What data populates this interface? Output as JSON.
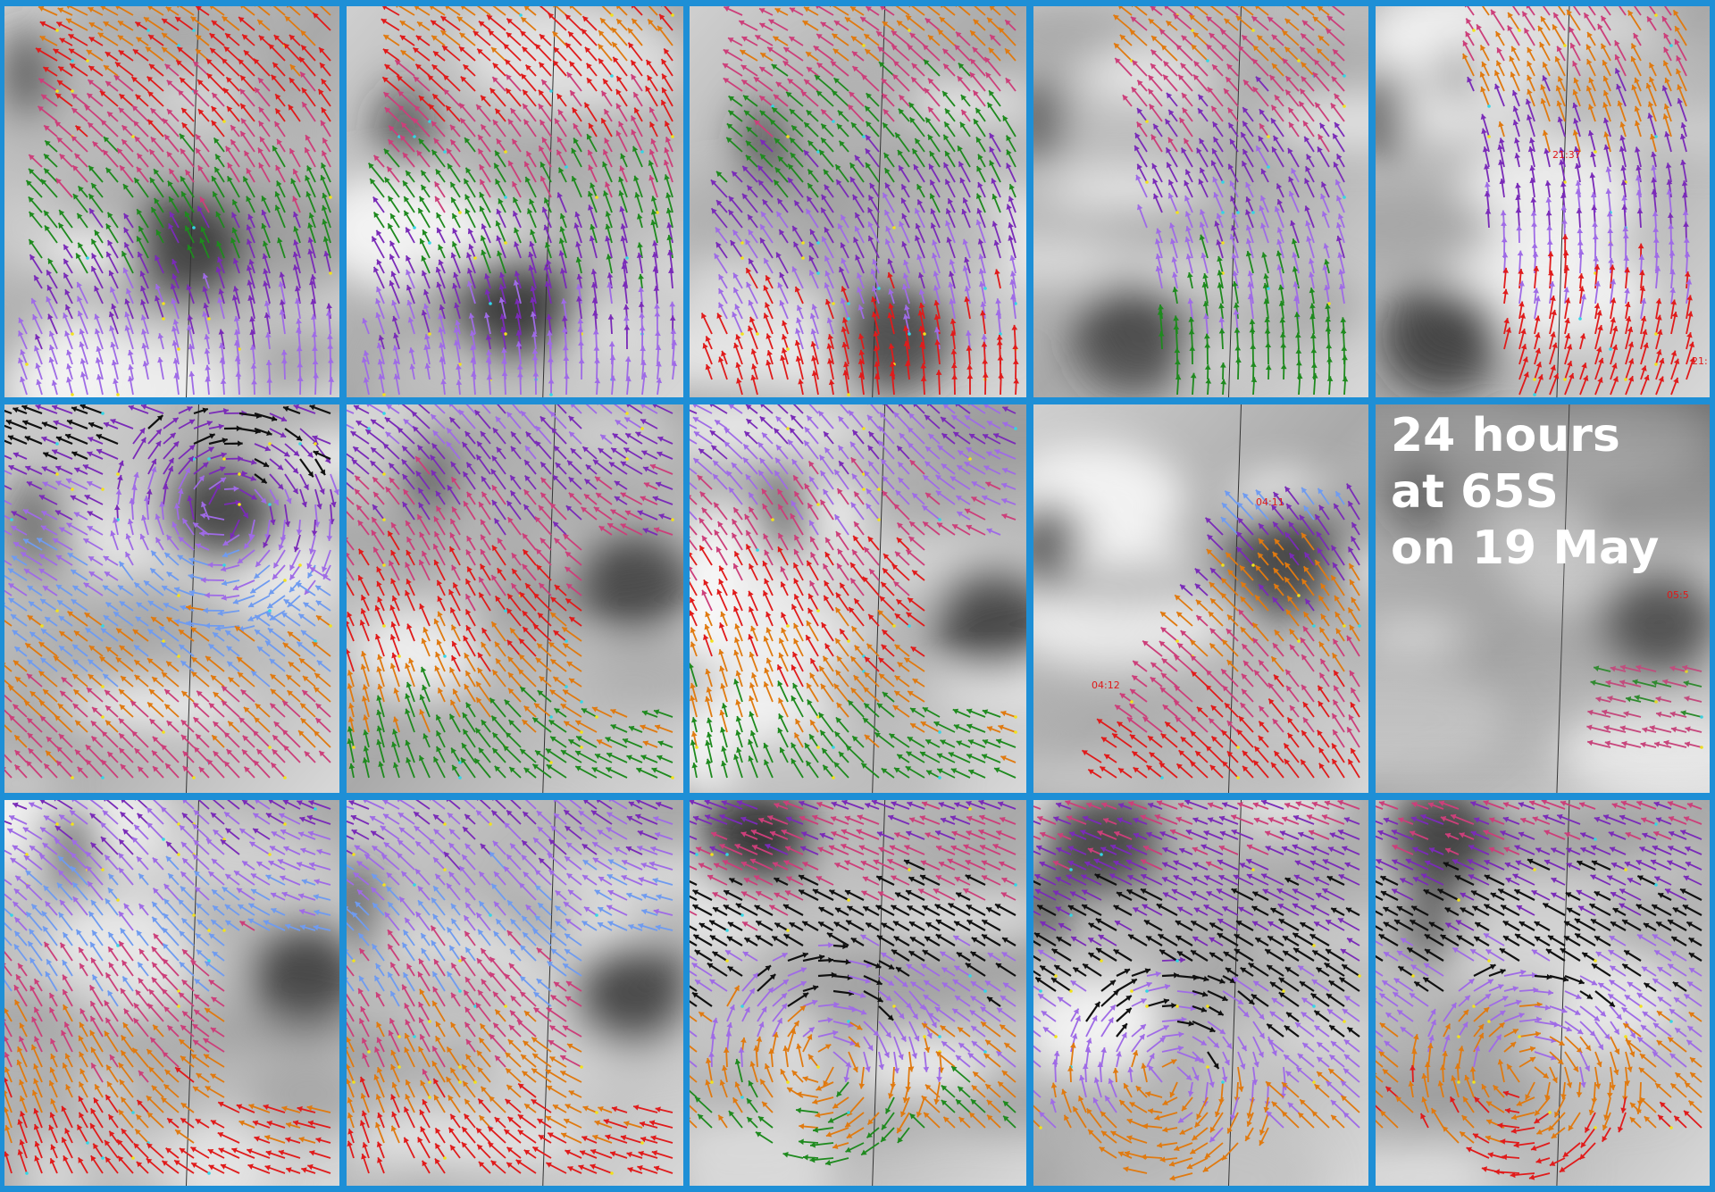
{
  "caption": {
    "line1": "24 hours",
    "line2": "at 65S",
    "line3": "on 19 May"
  },
  "timestamps": [
    "21:37",
    "21:",
    "04:11",
    "04:12",
    "05:5"
  ],
  "colors": {
    "frame": "#1e8fd6",
    "arrow_red": "#e01b1b",
    "arrow_orange": "#e07a10",
    "arrow_green": "#1e8a1e",
    "arrow_pink": "#cc3f7a",
    "arrow_purple": "#7a2bb8",
    "arrow_lavender": "#9f6be6",
    "arrow_blue": "#6f9bf0",
    "arrow_black": "#101010",
    "dot_yellow": "#f2e21a",
    "dot_cyan": "#32d6e6",
    "caption_text": "#ffffff",
    "timestamp_text": "#e01818"
  },
  "grid": {
    "rows": 3,
    "columns": 5
  }
}
